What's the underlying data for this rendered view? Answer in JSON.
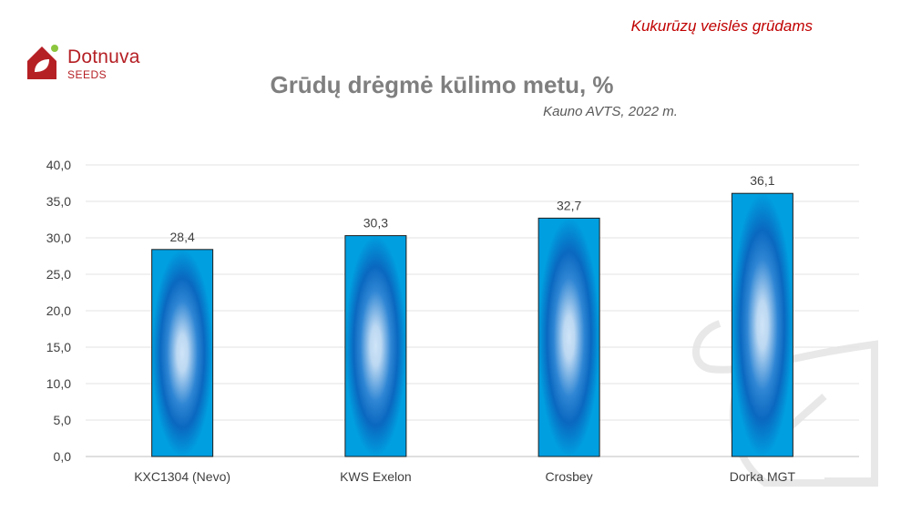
{
  "header": {
    "tag": "Kukurūzų veislės grūdams"
  },
  "logo": {
    "word": "Dotnuva",
    "sub": "SEEDS",
    "color": "#b52025"
  },
  "chart_data": {
    "type": "bar",
    "title": "Grūdų drėgmė kūlimo metu, %",
    "subtitle": "Kauno AVTS, 2022 m.",
    "categories": [
      "KXC1304 (Nevo)",
      "KWS Exelon",
      "Crosbey",
      "Dorka MGT"
    ],
    "values": [
      28.4,
      30.3,
      32.7,
      36.1
    ],
    "value_labels": [
      "28,4",
      "30,3",
      "32,7",
      "36,1"
    ],
    "ylim": [
      0,
      40
    ],
    "y_ticks": [
      "0,0",
      "5,0",
      "10,0",
      "15,0",
      "20,0",
      "25,0",
      "30,0",
      "35,0",
      "40,0"
    ],
    "grid": true,
    "legend": "none",
    "bar_color": "#0070c0"
  }
}
